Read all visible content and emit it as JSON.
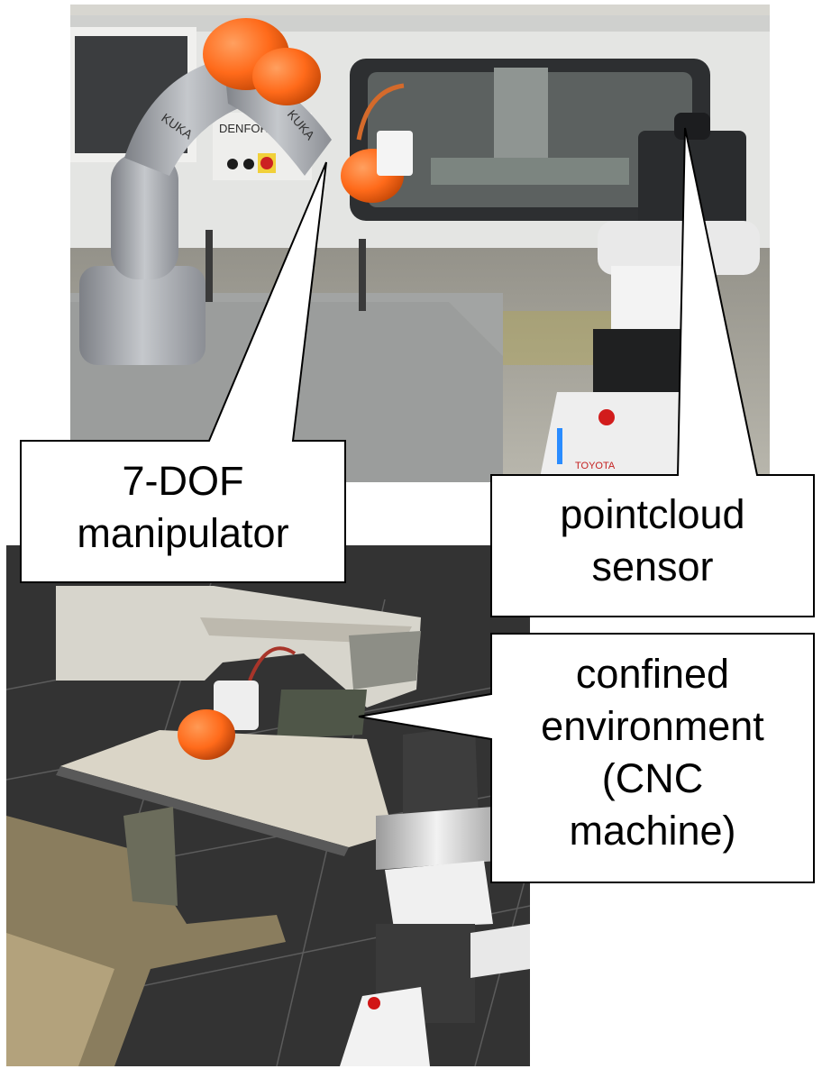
{
  "callouts": {
    "manipulator": {
      "line1": "7-DOF",
      "line2": "manipulator"
    },
    "sensor": {
      "line1": "pointcloud",
      "line2": "sensor"
    },
    "environment": {
      "line1": "confined",
      "line2": "environment",
      "line3": "(CNC",
      "line4": "machine)"
    }
  },
  "photo_text": {
    "brand_left": "KUKA",
    "brand_right": "KUKA",
    "machine_brand": "DENFORD",
    "robot_base_brand": "TOYOTA"
  },
  "colors": {
    "robot_orange": "#ff6a1a",
    "callout_border": "#000000",
    "callout_fill": "#ffffff",
    "rviz_background": "#333333"
  }
}
